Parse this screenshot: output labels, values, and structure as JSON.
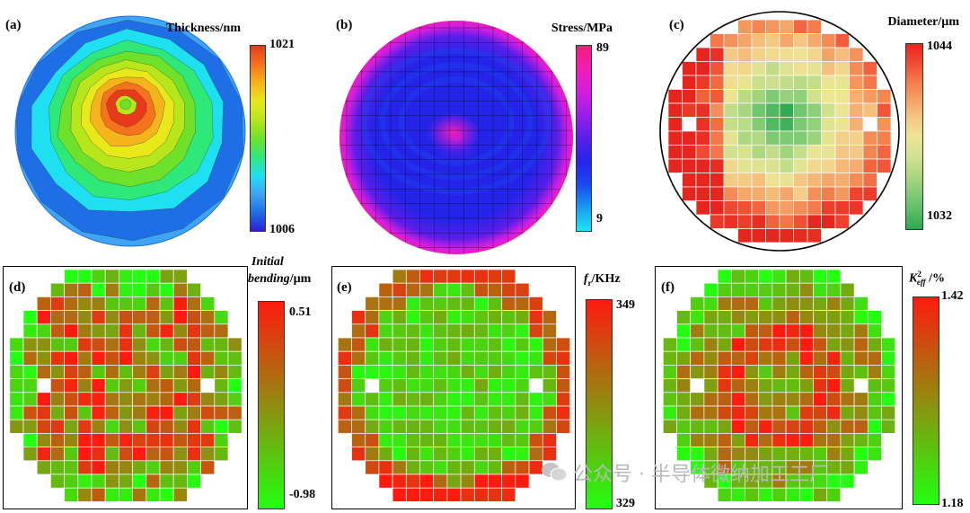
{
  "chart_data": [
    {
      "panel": "(a)",
      "type": "heatmap",
      "title": "Thickness/nm",
      "colorbar": {
        "max": "1021",
        "min": "1006"
      },
      "colormap": [
        "#2c1fd6",
        "#1e6fe6",
        "#3ea5f5",
        "#1ee0f0",
        "#2fe87a",
        "#6ee22a",
        "#b7e61c",
        "#e8e81a",
        "#f5b41c",
        "#f5731c",
        "#e83a1a"
      ],
      "peak_center": [
        0.48,
        0.38
      ]
    },
    {
      "panel": "(b)",
      "type": "heatmap",
      "title": "Stress/MPa",
      "colorbar": {
        "max": "89",
        "min": "9"
      },
      "colormap": [
        "#1ee6f5",
        "#1a9cf0",
        "#1a48f0",
        "#2424e8",
        "#5a1ee8",
        "#9a1ee8",
        "#d21ee0",
        "#f01eb4",
        "#f01e78"
      ]
    },
    {
      "panel": "(c)",
      "type": "heatmap",
      "title": "Diameter/µm",
      "colorbar": {
        "max": "1044",
        "min": "1032"
      },
      "colormap": [
        "#e6261e",
        "#f04a32",
        "#f57a4a",
        "#f5a064",
        "#f5c884",
        "#eee494",
        "#d4e290",
        "#b0d882",
        "#86cc76",
        "#5cbe66",
        "#2aa84e"
      ]
    },
    {
      "panel": "(d)",
      "type": "heatmap",
      "title_line1": "Initial",
      "title_line2": "bending",
      "title_unit": "/µm",
      "colorbar": {
        "max": "0.51",
        "min": "-0.98"
      },
      "colormap": [
        "#22ff10",
        "#ff1a10"
      ],
      "mean": 0.6
    },
    {
      "panel": "(e)",
      "type": "heatmap",
      "title_main": "f",
      "title_sub": "r",
      "title_unit": "/KHz",
      "colorbar": {
        "max": "349",
        "min": "329"
      },
      "colormap": [
        "#22ff10",
        "#ff1a10"
      ],
      "mean": 0.2
    },
    {
      "panel": "(f)",
      "type": "heatmap",
      "title_main": "K",
      "title_sub": "eff",
      "title_sup": "2",
      "title_unit": " /%",
      "colorbar": {
        "max": "1.42",
        "min": "1.18"
      },
      "colormap": [
        "#22ff10",
        "#ff1a10"
      ],
      "mean": 0.45
    }
  ],
  "watermark": {
    "text": "公众号 · 半导体微纳加工工厂"
  }
}
